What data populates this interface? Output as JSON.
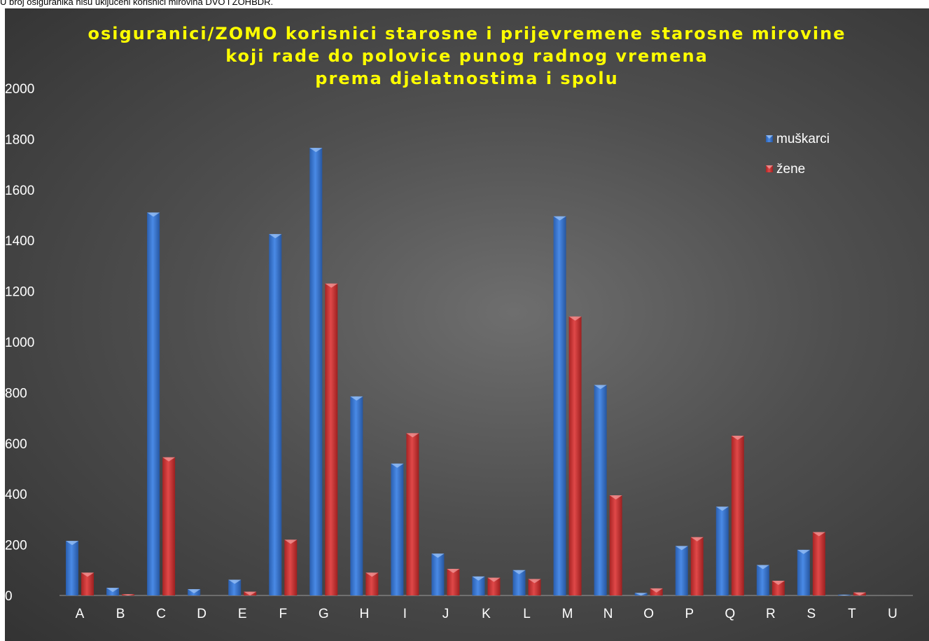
{
  "note": "U broj osiguranika nisu uključeni korisnici mirovina DVO i ZOHBDR.",
  "chart_data": {
    "type": "bar",
    "title_lines": [
      "osiguranici/ZOMO korisnici starosne i prijevremene starosne mirovine",
      "koji rade do polovice punog radnog vremena",
      "prema djelatnostima i spolu"
    ],
    "categories": [
      "A",
      "B",
      "C",
      "D",
      "E",
      "F",
      "G",
      "H",
      "I",
      "J",
      "K",
      "L",
      "M",
      "N",
      "O",
      "P",
      "Q",
      "R",
      "S",
      "T",
      "U"
    ],
    "series": [
      {
        "name": "muškarci",
        "color": "#3a78d4",
        "values": [
          215,
          30,
          1510,
          25,
          62,
          1425,
          1765,
          785,
          520,
          165,
          75,
          100,
          1495,
          830,
          10,
          195,
          350,
          120,
          180,
          3,
          0
        ]
      },
      {
        "name": "žene",
        "color": "#d43a3a",
        "values": [
          90,
          5,
          545,
          0,
          15,
          220,
          1230,
          90,
          640,
          105,
          70,
          65,
          1100,
          395,
          28,
          230,
          630,
          58,
          250,
          12,
          0
        ]
      }
    ],
    "ylim": [
      0,
      2000
    ],
    "yticks": [
      0,
      200,
      400,
      600,
      800,
      1000,
      1200,
      1400,
      1600,
      1800,
      2000
    ],
    "xlabel": "",
    "ylabel": "",
    "grid": false,
    "legend_position": "top-right"
  }
}
